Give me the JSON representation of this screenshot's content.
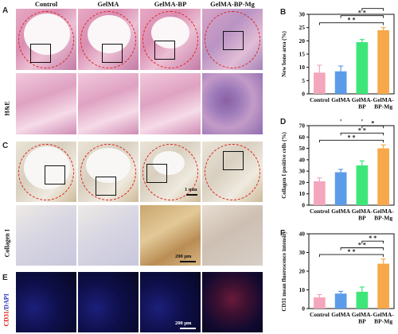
{
  "column_headers": [
    "Control",
    "GelMA",
    "GelMA-BP",
    "GelMA-BP-Mg"
  ],
  "panel_letters": {
    "A": "A",
    "B": "B",
    "C": "C",
    "D": "D",
    "E": "E",
    "F": "F"
  },
  "row_labels": {
    "he": "H&E",
    "collagen": "Collagen I",
    "cd31_red": "CD31",
    "cd31_sep": "/",
    "cd31_blue": "DAPI"
  },
  "scale_bars": {
    "overview": "1 mm",
    "zoom": "200 μm",
    "cd31": "200 μm"
  },
  "colors": {
    "control": "#f4a6bd",
    "gelma": "#5c9bea",
    "gelma_bp": "#3ee67a",
    "gelma_bp_mg": "#f7a84a",
    "significance": "#111111",
    "ring": "#e0201c"
  },
  "chart_data": [
    {
      "type": "bar",
      "panel": "B",
      "categories": [
        "Control",
        "GelMA",
        "GelMA-BP",
        "GelMA-BP-Mg"
      ],
      "category_lines": [
        [
          "Control"
        ],
        [
          "GelMA"
        ],
        [
          "GelMA-",
          "BP"
        ],
        [
          "GelMA-",
          "BP-Mg"
        ]
      ],
      "values": [
        8,
        8.5,
        19.5,
        24
      ],
      "errors": [
        2.8,
        2,
        1,
        1
      ],
      "ylabel": "New bone area (%)",
      "ylim": [
        0,
        30
      ],
      "yticks": [
        0,
        5,
        10,
        15,
        20,
        25,
        30
      ],
      "significance": [
        {
          "from": 0,
          "to": 3,
          "label": "* *"
        },
        {
          "from": 1,
          "to": 3,
          "label": "* *"
        },
        {
          "from": 2,
          "to": 3,
          "label": "*"
        },
        {
          "from": 1,
          "to": 2,
          "label": "*"
        }
      ]
    },
    {
      "type": "bar",
      "panel": "D",
      "categories": [
        "Control",
        "GelMA",
        "GelMA-BP",
        "GelMA-BP-Mg"
      ],
      "category_lines": [
        [
          "Control"
        ],
        [
          "GelMA"
        ],
        [
          "GelMA-",
          "BP"
        ],
        [
          "GelMA-",
          "BP-Mg"
        ]
      ],
      "values": [
        21,
        29,
        35,
        50
      ],
      "errors": [
        3,
        2.5,
        4,
        3
      ],
      "ylabel": "Collagen I positive cells (%)",
      "ylim": [
        0,
        70
      ],
      "yticks": [
        0,
        10,
        20,
        30,
        40,
        50,
        60,
        70
      ],
      "significance": [
        {
          "from": 0,
          "to": 3,
          "label": "* *"
        },
        {
          "from": 1,
          "to": 3,
          "label": "* *"
        },
        {
          "from": 2,
          "to": 3,
          "label": "*"
        },
        {
          "from": 1,
          "to": 2,
          "label": "*"
        }
      ]
    },
    {
      "type": "bar",
      "panel": "F",
      "categories": [
        "Control",
        "GelMA",
        "GelMA-BP",
        "GelMA-BP-Mg"
      ],
      "category_lines": [
        [
          "Control"
        ],
        [
          "GelMA"
        ],
        [
          "GelMA-",
          "BP"
        ],
        [
          "GelMA-",
          "BP-Mg"
        ]
      ],
      "values": [
        6,
        8,
        9,
        24
      ],
      "errors": [
        1.5,
        1.2,
        2.5,
        2.5
      ],
      "ylabel": "CD31 mean fluorescence intensity",
      "ylim": [
        0,
        40
      ],
      "yticks": [
        0,
        10,
        20,
        30,
        40
      ],
      "significance": [
        {
          "from": 0,
          "to": 3,
          "label": "* *"
        },
        {
          "from": 1,
          "to": 3,
          "label": "* *"
        },
        {
          "from": 2,
          "to": 3,
          "label": "* *"
        }
      ]
    }
  ]
}
